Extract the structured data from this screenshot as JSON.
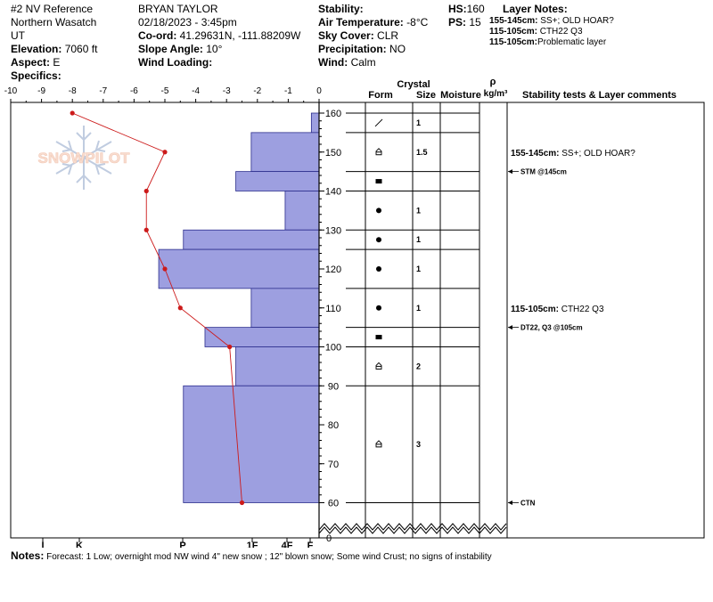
{
  "header": {
    "location_name": "#2 NV Reference",
    "range": "Northern Wasatch",
    "state": "UT",
    "elevation_label": "Elevation:",
    "elevation_value": "7060 ft",
    "aspect_label": "Aspect:",
    "aspect_value": "E",
    "specifics_label": "Specifics:",
    "observer": "BRYAN TAYLOR",
    "datetime": "02/18/2023 - 3:45pm",
    "coord_label": "Co-ord:",
    "coord_value": "41.29631N, -111.88209W",
    "slope_label": "Slope Angle:",
    "slope_value": "10°",
    "wind_loading_label": "Wind Loading:",
    "stability_label": "Stability:",
    "air_temp_label": "Air Temperature:",
    "air_temp_value": "-8°C",
    "sky_label": "Sky Cover:",
    "sky_value": "CLR",
    "precip_label": "Precipitation:",
    "precip_value": "NO",
    "wind_label": "Wind:",
    "wind_value": "Calm",
    "hs_label": "HS:",
    "hs_value": "160",
    "ps_label": "PS:",
    "ps_value": "15",
    "layer_notes_label": "Layer Notes:",
    "layer_notes": [
      {
        "range": "155-145cm:",
        "text": "SS+; OLD HOAR?"
      },
      {
        "range": "115-105cm:",
        "text": "CTH22 Q3"
      },
      {
        "range": "115-105cm:",
        "text": "Problematic layer"
      }
    ]
  },
  "logo_text": "SNOWPILOT",
  "chart_data": {
    "type": "snow_profile",
    "temp_axis": {
      "ticks": [
        "-10",
        "-9",
        "-8",
        "-7",
        "-6",
        "-5",
        "-4",
        "-3",
        "-2",
        "-1",
        "0"
      ],
      "range": [
        -10,
        0
      ]
    },
    "hardness_axis": {
      "ticks": [
        "I",
        "K",
        "P",
        "1F",
        "4F",
        "F"
      ]
    },
    "height_axis": {
      "ticks": [
        "60",
        "70",
        "80",
        "90",
        "100",
        "110",
        "120",
        "130",
        "140",
        "150",
        "160"
      ],
      "zero_label": "0",
      "range": [
        58,
        162
      ]
    },
    "temperature_profile": [
      {
        "h": 160,
        "t": -8.0
      },
      {
        "h": 150,
        "t": -5.0
      },
      {
        "h": 140,
        "t": -5.6
      },
      {
        "h": 130,
        "t": -5.6
      },
      {
        "h": 120,
        "t": -5.0
      },
      {
        "h": 110,
        "t": -4.5
      },
      {
        "h": 100,
        "t": -2.9
      },
      {
        "h": 60,
        "t": -2.5
      }
    ],
    "hardness_layers": [
      {
        "top": 160,
        "bottom": 155,
        "extent": -0.25
      },
      {
        "top": 155,
        "bottom": 145,
        "extent": -2.2
      },
      {
        "top": 145,
        "bottom": 140,
        "extent": -2.7
      },
      {
        "top": 140,
        "bottom": 130,
        "extent": -1.1
      },
      {
        "top": 130,
        "bottom": 125,
        "extent": -4.4
      },
      {
        "top": 125,
        "bottom": 115,
        "extent": -5.2
      },
      {
        "top": 115,
        "bottom": 105,
        "extent": -2.2
      },
      {
        "top": 105,
        "bottom": 100,
        "extent": -3.7
      },
      {
        "top": 100,
        "bottom": 90,
        "extent": -2.7
      },
      {
        "top": 90,
        "bottom": 60,
        "extent": -4.4
      }
    ],
    "table_headers": {
      "crystal": "Crystal",
      "form": "Form",
      "size": "Size",
      "moisture": "Moisture",
      "rho": "ρ",
      "density_unit": "kg/m³",
      "comments": "Stability tests & Layer comments"
    },
    "layers": [
      {
        "top": 160,
        "bottom": 155,
        "form": "DF",
        "size": "1"
      },
      {
        "top": 155,
        "bottom": 145,
        "form": "SH",
        "size": "1.5"
      },
      {
        "top": 145,
        "bottom": 140,
        "form": "MFcr",
        "size": ""
      },
      {
        "top": 140,
        "bottom": 130,
        "form": "RG",
        "size": "1"
      },
      {
        "top": 130,
        "bottom": 125,
        "form": "RG",
        "size": "1"
      },
      {
        "top": 125,
        "bottom": 115,
        "form": "RG",
        "size": "1"
      },
      {
        "top": 115,
        "bottom": 105,
        "form": "RG",
        "size": "1"
      },
      {
        "top": 105,
        "bottom": 100,
        "form": "MFcr",
        "size": ""
      },
      {
        "top": 100,
        "bottom": 90,
        "form": "SH",
        "size": "2"
      },
      {
        "top": 90,
        "bottom": 60,
        "form": "SH",
        "size": "3"
      }
    ],
    "layer_comments": [
      {
        "h": 150,
        "label": "155-145cm:",
        "text": "SS+; OLD HOAR?"
      },
      {
        "h": 110,
        "label": "115-105cm:",
        "text": "CTH22 Q3"
      }
    ],
    "stability_tests": [
      {
        "h": 145,
        "text": "STM @145cm"
      },
      {
        "h": 105,
        "text": "DT22, Q3 @105cm"
      },
      {
        "h": 60,
        "text": "CTN"
      }
    ]
  },
  "notes_label": "Notes:",
  "notes_text": "Forecast: 1 Low; overnight mod NW wind 4\" new snow ; 12\" blown snow; Some wind Crust; no signs of instability",
  "colors": {
    "hardness_fill": "#9d9fe0",
    "hardness_stroke": "#2b2d8c",
    "temp_line": "#cc1a1a",
    "logo": "#f2b8a0"
  }
}
